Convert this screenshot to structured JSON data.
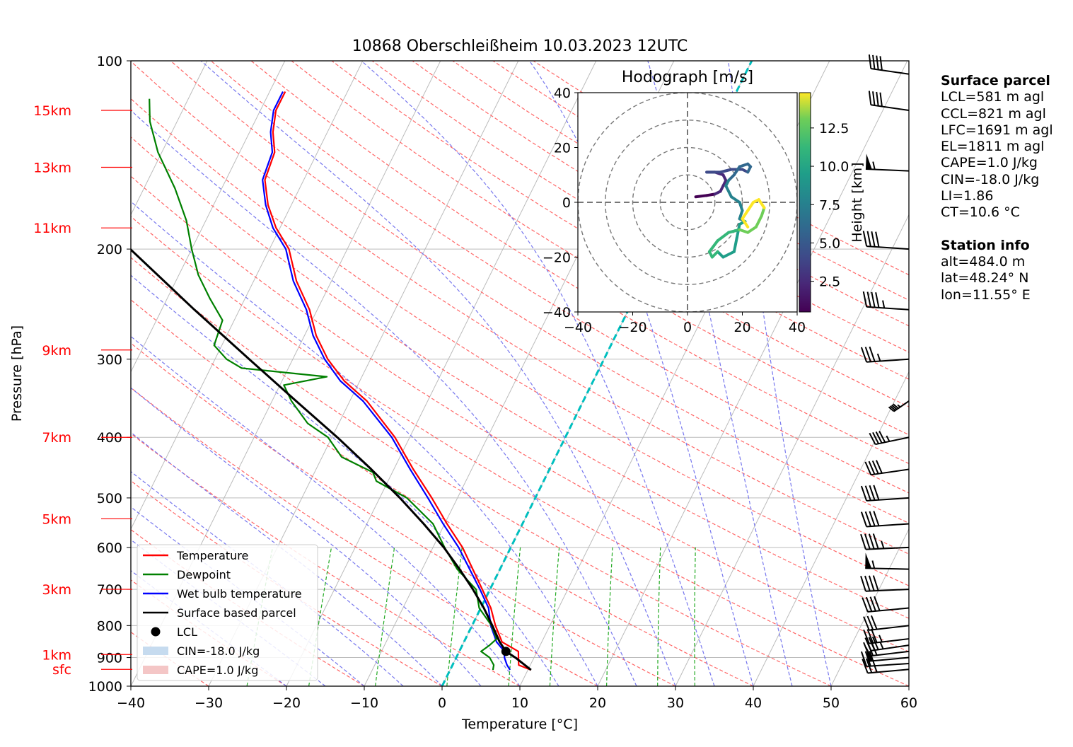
{
  "title": "10868 Oberschleißheim 10.03.2023 12UTC",
  "colors": {
    "temperature": "#ff0000",
    "dewpoint": "#008000",
    "wetbulb": "#0000ff",
    "parcel": "#000000",
    "isotherm_zero": "#00bfbf",
    "dry_adiabat": "#ff6666",
    "moist_adiabat": "#7777ee",
    "mixing_ratio": "#22aa22",
    "height_label": "#ff0000"
  },
  "chart_data": {
    "type": "line",
    "title": "10868 Oberschleißheim 10.03.2023 12UTC",
    "xlabel": "Temperature [°C]",
    "ylabel": "Pressure [hPa]",
    "xlim": [
      -40,
      60
    ],
    "ylim": [
      1000,
      100
    ],
    "y_scale": "log",
    "skew": true,
    "grid": true,
    "xticks": [
      "−40",
      "−30",
      "−20",
      "−10",
      "0",
      "10",
      "20",
      "30",
      "40",
      "50",
      "60"
    ],
    "yticks": [
      {
        "p": 100,
        "label": "100"
      },
      {
        "p": 200,
        "label": "200"
      },
      {
        "p": 300,
        "label": "300"
      },
      {
        "p": 400,
        "label": "400"
      },
      {
        "p": 500,
        "label": "500"
      },
      {
        "p": 600,
        "label": "600"
      },
      {
        "p": 700,
        "label": "700"
      },
      {
        "p": 800,
        "label": "800"
      },
      {
        "p": 900,
        "label": "900"
      },
      {
        "p": 1000,
        "label": "1000"
      }
    ],
    "height_labels": [
      {
        "p": 120,
        "label": "15km"
      },
      {
        "p": 148,
        "label": "13km"
      },
      {
        "p": 185,
        "label": "11km"
      },
      {
        "p": 290,
        "label": "9km"
      },
      {
        "p": 400,
        "label": "7km"
      },
      {
        "p": 540,
        "label": "5km"
      },
      {
        "p": 700,
        "label": "3km"
      },
      {
        "p": 890,
        "label": "1km"
      },
      {
        "p": 940,
        "label": "sfc"
      }
    ],
    "legend_position": "lower-left",
    "legend": [
      {
        "label": "Temperature",
        "kind": "line",
        "color": "#ff0000"
      },
      {
        "label": "Dewpoint",
        "kind": "line",
        "color": "#008000"
      },
      {
        "label": "Wet bulb temperature",
        "kind": "line",
        "color": "#0000ff"
      },
      {
        "label": "Surface based parcel",
        "kind": "line",
        "color": "#000000"
      },
      {
        "label": "LCL",
        "kind": "dot",
        "color": "#000000"
      },
      {
        "label": "CIN=-18.0 J/kg",
        "kind": "patch",
        "color": "#c6dbef"
      },
      {
        "label": "CAPE=1.0 J/kg",
        "kind": "patch",
        "color": "#f4c6c6"
      }
    ],
    "series": [
      {
        "name": "Temperature",
        "color": "#ff0000",
        "points": [
          [
            942,
            10.4
          ],
          [
            925,
            8.5
          ],
          [
            900,
            8.0
          ],
          [
            880,
            7.6
          ],
          [
            850,
            4.9
          ],
          [
            800,
            3.0
          ],
          [
            750,
            1.3
          ],
          [
            700,
            -1.0
          ],
          [
            650,
            -3.5
          ],
          [
            600,
            -6.2
          ],
          [
            550,
            -9.7
          ],
          [
            500,
            -13.3
          ],
          [
            450,
            -17.5
          ],
          [
            400,
            -21.9
          ],
          [
            350,
            -27.8
          ],
          [
            325,
            -32.0
          ],
          [
            300,
            -35.5
          ],
          [
            275,
            -38.5
          ],
          [
            250,
            -41.0
          ],
          [
            225,
            -44.5
          ],
          [
            200,
            -47.5
          ],
          [
            185,
            -50.5
          ],
          [
            170,
            -53.0
          ],
          [
            155,
            -55.0
          ],
          [
            140,
            -55.5
          ],
          [
            130,
            -57.0
          ],
          [
            120,
            -58.0
          ],
          [
            112,
            -58.0
          ]
        ]
      },
      {
        "name": "Wet bulb temperature",
        "color": "#0000ff",
        "points": [
          [
            942,
            7.7
          ],
          [
            925,
            7.0
          ],
          [
            900,
            6.2
          ],
          [
            880,
            5.8
          ],
          [
            850,
            4.2
          ],
          [
            800,
            2.4
          ],
          [
            750,
            1.0
          ],
          [
            700,
            -1.3
          ],
          [
            650,
            -3.9
          ],
          [
            600,
            -6.7
          ],
          [
            550,
            -10.2
          ],
          [
            500,
            -13.8
          ],
          [
            450,
            -17.9
          ],
          [
            400,
            -22.3
          ],
          [
            350,
            -28.3
          ],
          [
            325,
            -32.5
          ],
          [
            300,
            -35.9
          ],
          [
            275,
            -38.9
          ],
          [
            250,
            -41.4
          ],
          [
            225,
            -44.9
          ],
          [
            200,
            -47.9
          ],
          [
            185,
            -50.9
          ],
          [
            170,
            -53.3
          ],
          [
            155,
            -55.3
          ],
          [
            140,
            -55.8
          ],
          [
            130,
            -57.3
          ],
          [
            120,
            -58.3
          ],
          [
            112,
            -58.3
          ]
        ]
      },
      {
        "name": "Dewpoint",
        "color": "#008000",
        "points": [
          [
            942,
            5.5
          ],
          [
            925,
            5.3
          ],
          [
            900,
            4.3
          ],
          [
            880,
            2.8
          ],
          [
            860,
            3.5
          ],
          [
            840,
            4.0
          ],
          [
            800,
            2.5
          ],
          [
            750,
            -0.2
          ],
          [
            700,
            -1.8
          ],
          [
            650,
            -5.5
          ],
          [
            600,
            -8.5
          ],
          [
            550,
            -11.5
          ],
          [
            500,
            -16.5
          ],
          [
            470,
            -21.5
          ],
          [
            455,
            -22.5
          ],
          [
            430,
            -27.5
          ],
          [
            400,
            -30.5
          ],
          [
            380,
            -34.0
          ],
          [
            350,
            -37.5
          ],
          [
            330,
            -39.5
          ],
          [
            320,
            -34.5
          ],
          [
            310,
            -46.0
          ],
          [
            300,
            -48.5
          ],
          [
            285,
            -51.0
          ],
          [
            260,
            -51.5
          ],
          [
            240,
            -54.5
          ],
          [
            220,
            -57.5
          ],
          [
            200,
            -60.0
          ],
          [
            180,
            -62.5
          ],
          [
            160,
            -66.0
          ],
          [
            140,
            -70.5
          ],
          [
            125,
            -73.5
          ],
          [
            115,
            -75.0
          ]
        ]
      },
      {
        "name": "Surface based parcel",
        "color": "#000000",
        "points": [
          [
            942,
            10.4
          ],
          [
            900,
            7.6
          ],
          [
            880,
            6.0
          ],
          [
            850,
            4.6
          ],
          [
            800,
            2.6
          ],
          [
            750,
            0.4
          ],
          [
            700,
            -2.2
          ],
          [
            650,
            -5.2
          ],
          [
            600,
            -8.6
          ],
          [
            550,
            -12.7
          ],
          [
            500,
            -17.4
          ],
          [
            450,
            -22.9
          ],
          [
            400,
            -29.3
          ],
          [
            350,
            -36.9
          ],
          [
            300,
            -45.6
          ],
          [
            250,
            -55.8
          ],
          [
            200,
            -67.9
          ],
          [
            170,
            -76.5
          ],
          [
            150,
            -83.0
          ]
        ]
      }
    ],
    "lcl": {
      "p": 880,
      "t": 6.0
    },
    "wind_barbs": [
      {
        "p": 940,
        "speed_kt": 25,
        "dir_deg": 250
      },
      {
        "p": 920,
        "speed_kt": 30,
        "dir_deg": 255
      },
      {
        "p": 900,
        "speed_kt": 50,
        "dir_deg": 250
      },
      {
        "p": 880,
        "speed_kt": 30,
        "dir_deg": 245
      },
      {
        "p": 860,
        "speed_kt": 35,
        "dir_deg": 240
      },
      {
        "p": 840,
        "speed_kt": 35,
        "dir_deg": 245
      },
      {
        "p": 800,
        "speed_kt": 30,
        "dir_deg": 245
      },
      {
        "p": 750,
        "speed_kt": 40,
        "dir_deg": 250
      },
      {
        "p": 700,
        "speed_kt": 40,
        "dir_deg": 260
      },
      {
        "p": 650,
        "speed_kt": 55,
        "dir_deg": 275
      },
      {
        "p": 600,
        "speed_kt": 45,
        "dir_deg": 260
      },
      {
        "p": 550,
        "speed_kt": 40,
        "dir_deg": 255
      },
      {
        "p": 500,
        "speed_kt": 40,
        "dir_deg": 255
      },
      {
        "p": 450,
        "speed_kt": 40,
        "dir_deg": 240
      },
      {
        "p": 400,
        "speed_kt": 45,
        "dir_deg": 230
      },
      {
        "p": 350,
        "speed_kt": 45,
        "dir_deg": 200
      },
      {
        "p": 300,
        "speed_kt": 35,
        "dir_deg": 255
      },
      {
        "p": 250,
        "speed_kt": 45,
        "dir_deg": 285
      },
      {
        "p": 200,
        "speed_kt": 40,
        "dir_deg": 285
      },
      {
        "p": 150,
        "speed_kt": 55,
        "dir_deg": 280
      },
      {
        "p": 120,
        "speed_kt": 40,
        "dir_deg": 300
      },
      {
        "p": 105,
        "speed_kt": 40,
        "dir_deg": 300
      }
    ],
    "hodograph": {
      "title": "Hodograph [m/s]",
      "xlim": [
        -40,
        40
      ],
      "ylim": [
        -40,
        40
      ],
      "ticks": [
        "−40",
        "−20",
        "0",
        "20",
        "40"
      ],
      "ring_radii": [
        10,
        20,
        30,
        40
      ],
      "colorbar_label": "Height [km]",
      "colorbar_ticks": [
        "2.5",
        "5.0",
        "7.5",
        "10.0",
        "12.5"
      ],
      "colorbar_range": [
        0.5,
        14.8
      ],
      "points": [
        [
          3,
          2,
          0.5
        ],
        [
          7,
          2.5,
          0.8
        ],
        [
          10,
          3,
          1.1
        ],
        [
          12,
          4,
          1.4
        ],
        [
          13,
          6,
          1.8
        ],
        [
          14,
          8,
          2.2
        ],
        [
          13,
          10,
          2.6
        ],
        [
          10,
          11,
          2.9
        ],
        [
          7,
          11,
          3.2
        ],
        [
          12,
          11,
          3.6
        ],
        [
          16,
          12,
          4.0
        ],
        [
          20,
          12,
          4.4
        ],
        [
          22,
          11,
          4.8
        ],
        [
          23,
          13,
          5.2
        ],
        [
          22,
          14,
          5.6
        ],
        [
          19,
          13,
          6.0
        ],
        [
          17,
          10,
          6.4
        ],
        [
          15,
          8,
          6.6
        ],
        [
          14,
          6,
          6.8
        ],
        [
          16,
          2,
          7.0
        ],
        [
          19,
          0,
          7.3
        ],
        [
          20,
          -3,
          7.6
        ],
        [
          19,
          -6,
          7.9
        ],
        [
          21,
          -7,
          8.3
        ],
        [
          19,
          -8,
          8.7
        ],
        [
          18,
          -13,
          9.0
        ],
        [
          17,
          -18,
          9.3
        ],
        [
          13,
          -20,
          9.7
        ],
        [
          11,
          -18,
          10.1
        ],
        [
          9,
          -20,
          10.5
        ],
        [
          8,
          -18,
          10.9
        ],
        [
          11,
          -14,
          11.3
        ],
        [
          15,
          -11,
          11.7
        ],
        [
          19,
          -10,
          12.1
        ],
        [
          22,
          -11,
          12.5
        ],
        [
          25,
          -9,
          12.9
        ],
        [
          27,
          -5,
          13.3
        ],
        [
          28,
          -2,
          13.7
        ],
        [
          26,
          1,
          14.0
        ],
        [
          24,
          0,
          14.2
        ],
        [
          22,
          -3,
          14.4
        ],
        [
          20,
          -6,
          14.6
        ],
        [
          22,
          -9,
          14.8
        ]
      ]
    }
  },
  "info": {
    "surface_heading": "Surface parcel",
    "surface_lines": [
      "LCL=581 m agl",
      "CCL=821 m agl",
      "LFC=1691 m agl",
      "EL=1811 m agl",
      "CAPE=1.0 J/kg",
      "CIN=-18.0 J/kg",
      "LI=1.86",
      "CT=10.6 °C"
    ],
    "station_heading": "Station info",
    "station_lines": [
      "alt=484.0 m",
      "lat=48.24° N",
      "lon=11.55° E"
    ]
  }
}
